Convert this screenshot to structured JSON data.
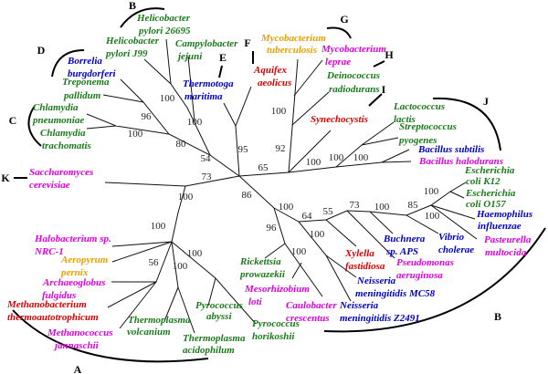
{
  "colors": {
    "green": "#1a7a1a",
    "blue": "#0000cc",
    "magenta": "#e000e0",
    "red": "#e00000",
    "orange": "#e8a000"
  },
  "taxa": [
    {
      "l1": "Helicobacter",
      "l2": "pylori 26695",
      "color": "green"
    },
    {
      "l1": "Helicobacter",
      "l2": "pylori J99",
      "color": "green"
    },
    {
      "l1": "Campylobacter",
      "l2": "jejuni",
      "color": "green"
    },
    {
      "l1": "Borrelia",
      "l2": "burgdorferi",
      "color": "blue"
    },
    {
      "l1": "Treponema",
      "l2": "pallidum",
      "color": "green"
    },
    {
      "l1": "Chlamydia",
      "l2": "pneumoniae",
      "color": "green"
    },
    {
      "l1": "Chlamydia",
      "l2": "trachomatis",
      "color": "green"
    },
    {
      "l1": "Thermotoga",
      "l2": "maritima",
      "color": "blue"
    },
    {
      "l1": "Aquifex",
      "l2": "aeolicus",
      "color": "red"
    },
    {
      "l1": "Mycobacterium",
      "l2": "tuberculosis",
      "color": "orange"
    },
    {
      "l1": "Mycobacterium",
      "l2": "leprae",
      "color": "magenta"
    },
    {
      "l1": "Deinococcus",
      "l2": "radiodurans",
      "color": "green"
    },
    {
      "l1": "Synechocystis",
      "l2": "",
      "color": "red"
    },
    {
      "l1": "Lactococcus",
      "l2": "lactis",
      "color": "green"
    },
    {
      "l1": "Streptococcus",
      "l2": "pyogenes",
      "color": "green"
    },
    {
      "l1": "Bacillus subtilis",
      "l2": "",
      "color": "blue"
    },
    {
      "l1": "Bacillus halodurans",
      "l2": "",
      "color": "magenta"
    },
    {
      "l1": "Escherichia",
      "l2": "coli K12",
      "color": "green"
    },
    {
      "l1": "Escherichia",
      "l2": "coli O157",
      "color": "green"
    },
    {
      "l1": "Haemophilus",
      "l2": "influenzae",
      "color": "blue"
    },
    {
      "l1": "Pasteurella",
      "l2": "multocida",
      "color": "magenta"
    },
    {
      "l1": "Vibrio",
      "l2": "cholerae",
      "color": "blue"
    },
    {
      "l1": "Buchnera",
      "l2": "sp. APS",
      "color": "blue"
    },
    {
      "l1": "Pseudomonas",
      "l2": "aeruginosa",
      "color": "magenta"
    },
    {
      "l1": "Xylella",
      "l2": "fastidiosa",
      "color": "red"
    },
    {
      "l1": "Neisseria",
      "l2": "meningitidis MC58",
      "color": "blue"
    },
    {
      "l1": "Neisseria",
      "l2": "meningitidis Z2491",
      "color": "blue"
    },
    {
      "l1": "Caulobacter",
      "l2": "crescentus",
      "color": "magenta"
    },
    {
      "l1": "Mesorhizobium",
      "l2": "loti",
      "color": "magenta"
    },
    {
      "l1": "Rickettsia",
      "l2": "prowazekii",
      "color": "green"
    },
    {
      "l1": "Pyrococcus",
      "l2": "horikoshii",
      "color": "green"
    },
    {
      "l1": "Pyrococcus",
      "l2": "abyssi",
      "color": "green"
    },
    {
      "l1": "Thermoplasma",
      "l2": "acidophilum",
      "color": "green"
    },
    {
      "l1": "Thermoplasma",
      "l2": "volcanium",
      "color": "green"
    },
    {
      "l1": "Methanococcus",
      "l2": "jannaschii",
      "color": "magenta"
    },
    {
      "l1": "Methanobacterium",
      "l2": "thermoautotrophicum",
      "color": "red"
    },
    {
      "l1": "Archaeoglobus",
      "l2": "fulgidus",
      "color": "magenta"
    },
    {
      "l1": "Aeropyrum",
      "l2": "pernix",
      "color": "orange"
    },
    {
      "l1": "Halobacterium sp.",
      "l2": "NRC-1",
      "color": "magenta"
    },
    {
      "l1": "Saccharomyces",
      "l2": "cerevisiae",
      "color": "magenta"
    }
  ],
  "bootstrap": [
    "100",
    "100",
    "96",
    "100",
    "80",
    "54",
    "95",
    "73",
    "65",
    "92",
    "100",
    "100",
    "100",
    "100",
    "100",
    "100",
    "56",
    "100",
    "100",
    "86",
    "96",
    "100",
    "64",
    "55",
    "73",
    "100",
    "85",
    "100",
    "100",
    "100",
    "100"
  ],
  "groups": [
    "A",
    "B",
    "C",
    "D",
    "E",
    "F",
    "G",
    "H",
    "I",
    "J",
    "K",
    "B"
  ]
}
